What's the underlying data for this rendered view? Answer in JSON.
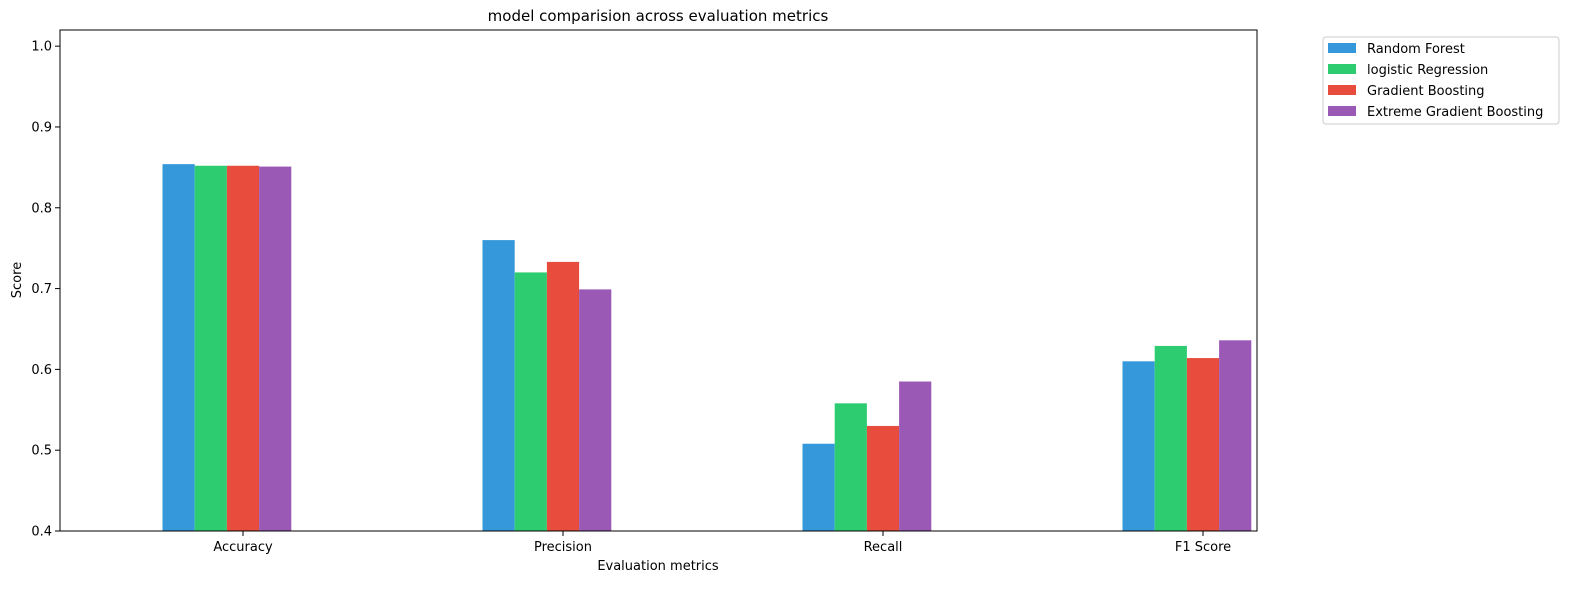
{
  "chart_data": {
    "type": "bar",
    "title": "model comparision across evaluation metrics",
    "xlabel": "Evaluation metrics",
    "ylabel": "Score",
    "categories": [
      "Accuracy",
      "Precision",
      "Recall",
      "F1 Score"
    ],
    "ylim": [
      0.4,
      1.02
    ],
    "yticks": [
      0.4,
      0.5,
      0.6,
      0.7,
      0.8,
      0.9,
      1.0
    ],
    "ytick_labels": [
      "0.4",
      "0.5",
      "0.6",
      "0.7",
      "0.8",
      "0.9",
      "1.0"
    ],
    "grid": false,
    "legend_position": "outside-top-right",
    "series": [
      {
        "name": "Random Forest",
        "color": "#3498db",
        "values": [
          0.854,
          0.76,
          0.508,
          0.61
        ]
      },
      {
        "name": "logistic Regression",
        "color": "#2ecc71",
        "values": [
          0.852,
          0.72,
          0.558,
          0.629
        ]
      },
      {
        "name": "Gradient Boosting",
        "color": "#e74c3c",
        "values": [
          0.852,
          0.733,
          0.53,
          0.614
        ]
      },
      {
        "name": "Extreme Gradient Boosting",
        "color": "#9b59b6",
        "values": [
          0.851,
          0.699,
          0.585,
          0.636
        ]
      }
    ]
  }
}
